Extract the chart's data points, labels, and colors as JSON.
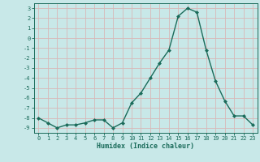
{
  "x": [
    0,
    1,
    2,
    3,
    4,
    5,
    6,
    7,
    8,
    9,
    10,
    11,
    12,
    13,
    14,
    15,
    16,
    17,
    18,
    19,
    20,
    21,
    22,
    23
  ],
  "y": [
    -8.0,
    -8.5,
    -9.0,
    -8.7,
    -8.7,
    -8.5,
    -8.2,
    -8.2,
    -9.0,
    -8.5,
    -6.5,
    -5.5,
    -4.0,
    -2.5,
    -1.2,
    2.2,
    3.0,
    2.6,
    -1.2,
    -4.3,
    -6.3,
    -7.8,
    -7.8,
    -8.7
  ],
  "line_color": "#1a6b5a",
  "marker": "D",
  "markersize": 2.0,
  "bg_color": "#c8e8e8",
  "grid_color": "#d8b8b8",
  "xlabel": "Humidex (Indice chaleur)",
  "xlim": [
    -0.5,
    23.5
  ],
  "ylim": [
    -9.5,
    3.5
  ],
  "yticks": [
    3,
    2,
    1,
    0,
    -1,
    -2,
    -3,
    -4,
    -5,
    -6,
    -7,
    -8,
    -9
  ],
  "xticks": [
    0,
    1,
    2,
    3,
    4,
    5,
    6,
    7,
    8,
    9,
    10,
    11,
    12,
    13,
    14,
    15,
    16,
    17,
    18,
    19,
    20,
    21,
    22,
    23
  ],
  "tick_color": "#1a6b5a",
  "label_color": "#1a6b5a",
  "tick_fontsize": 5.0,
  "xlabel_fontsize": 6.0
}
